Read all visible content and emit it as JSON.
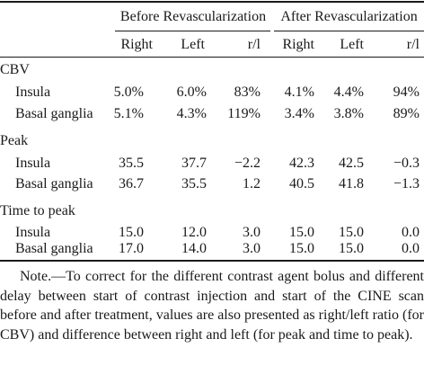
{
  "table": {
    "group_headers": [
      "Before Revascularization",
      "After Revascularization"
    ],
    "column_headers": [
      "Right",
      "Left",
      "r/l",
      "Right",
      "Left",
      "r/l"
    ],
    "sections": [
      {
        "label": "CBV",
        "rows": [
          {
            "label": "Insula",
            "values": [
              "5.0%",
              "6.0%",
              "83%",
              "4.1%",
              "4.4%",
              "94%"
            ]
          },
          {
            "label": "Basal ganglia",
            "values": [
              "5.1%",
              "4.3%",
              "119%",
              "3.4%",
              "3.8%",
              "89%"
            ]
          }
        ]
      },
      {
        "label": "Peak",
        "rows": [
          {
            "label": "Insula",
            "values": [
              "35.5",
              "37.7",
              "−2.2",
              "42.3",
              "42.5",
              "−0.3"
            ]
          },
          {
            "label": "Basal ganglia",
            "values": [
              "36.7",
              "35.5",
              "1.2",
              "40.5",
              "41.8",
              "−1.3"
            ]
          }
        ]
      },
      {
        "label": "Time to peak",
        "rows": [
          {
            "label": "Insula",
            "values": [
              "15.0",
              "12.0",
              "3.0",
              "15.0",
              "15.0",
              "0.0"
            ]
          },
          {
            "label": "Basal ganglia",
            "values": [
              "17.0",
              "14.0",
              "3.0",
              "15.0",
              "15.0",
              "0.0"
            ]
          }
        ]
      }
    ],
    "note": "Note.—To correct for the different contrast agent bolus and different delay between start of contrast injection and start of the CINE scan before and after treatment, values are also presented as right/left ratio (for CBV) and difference between right and left (for peak and time to peak)."
  }
}
